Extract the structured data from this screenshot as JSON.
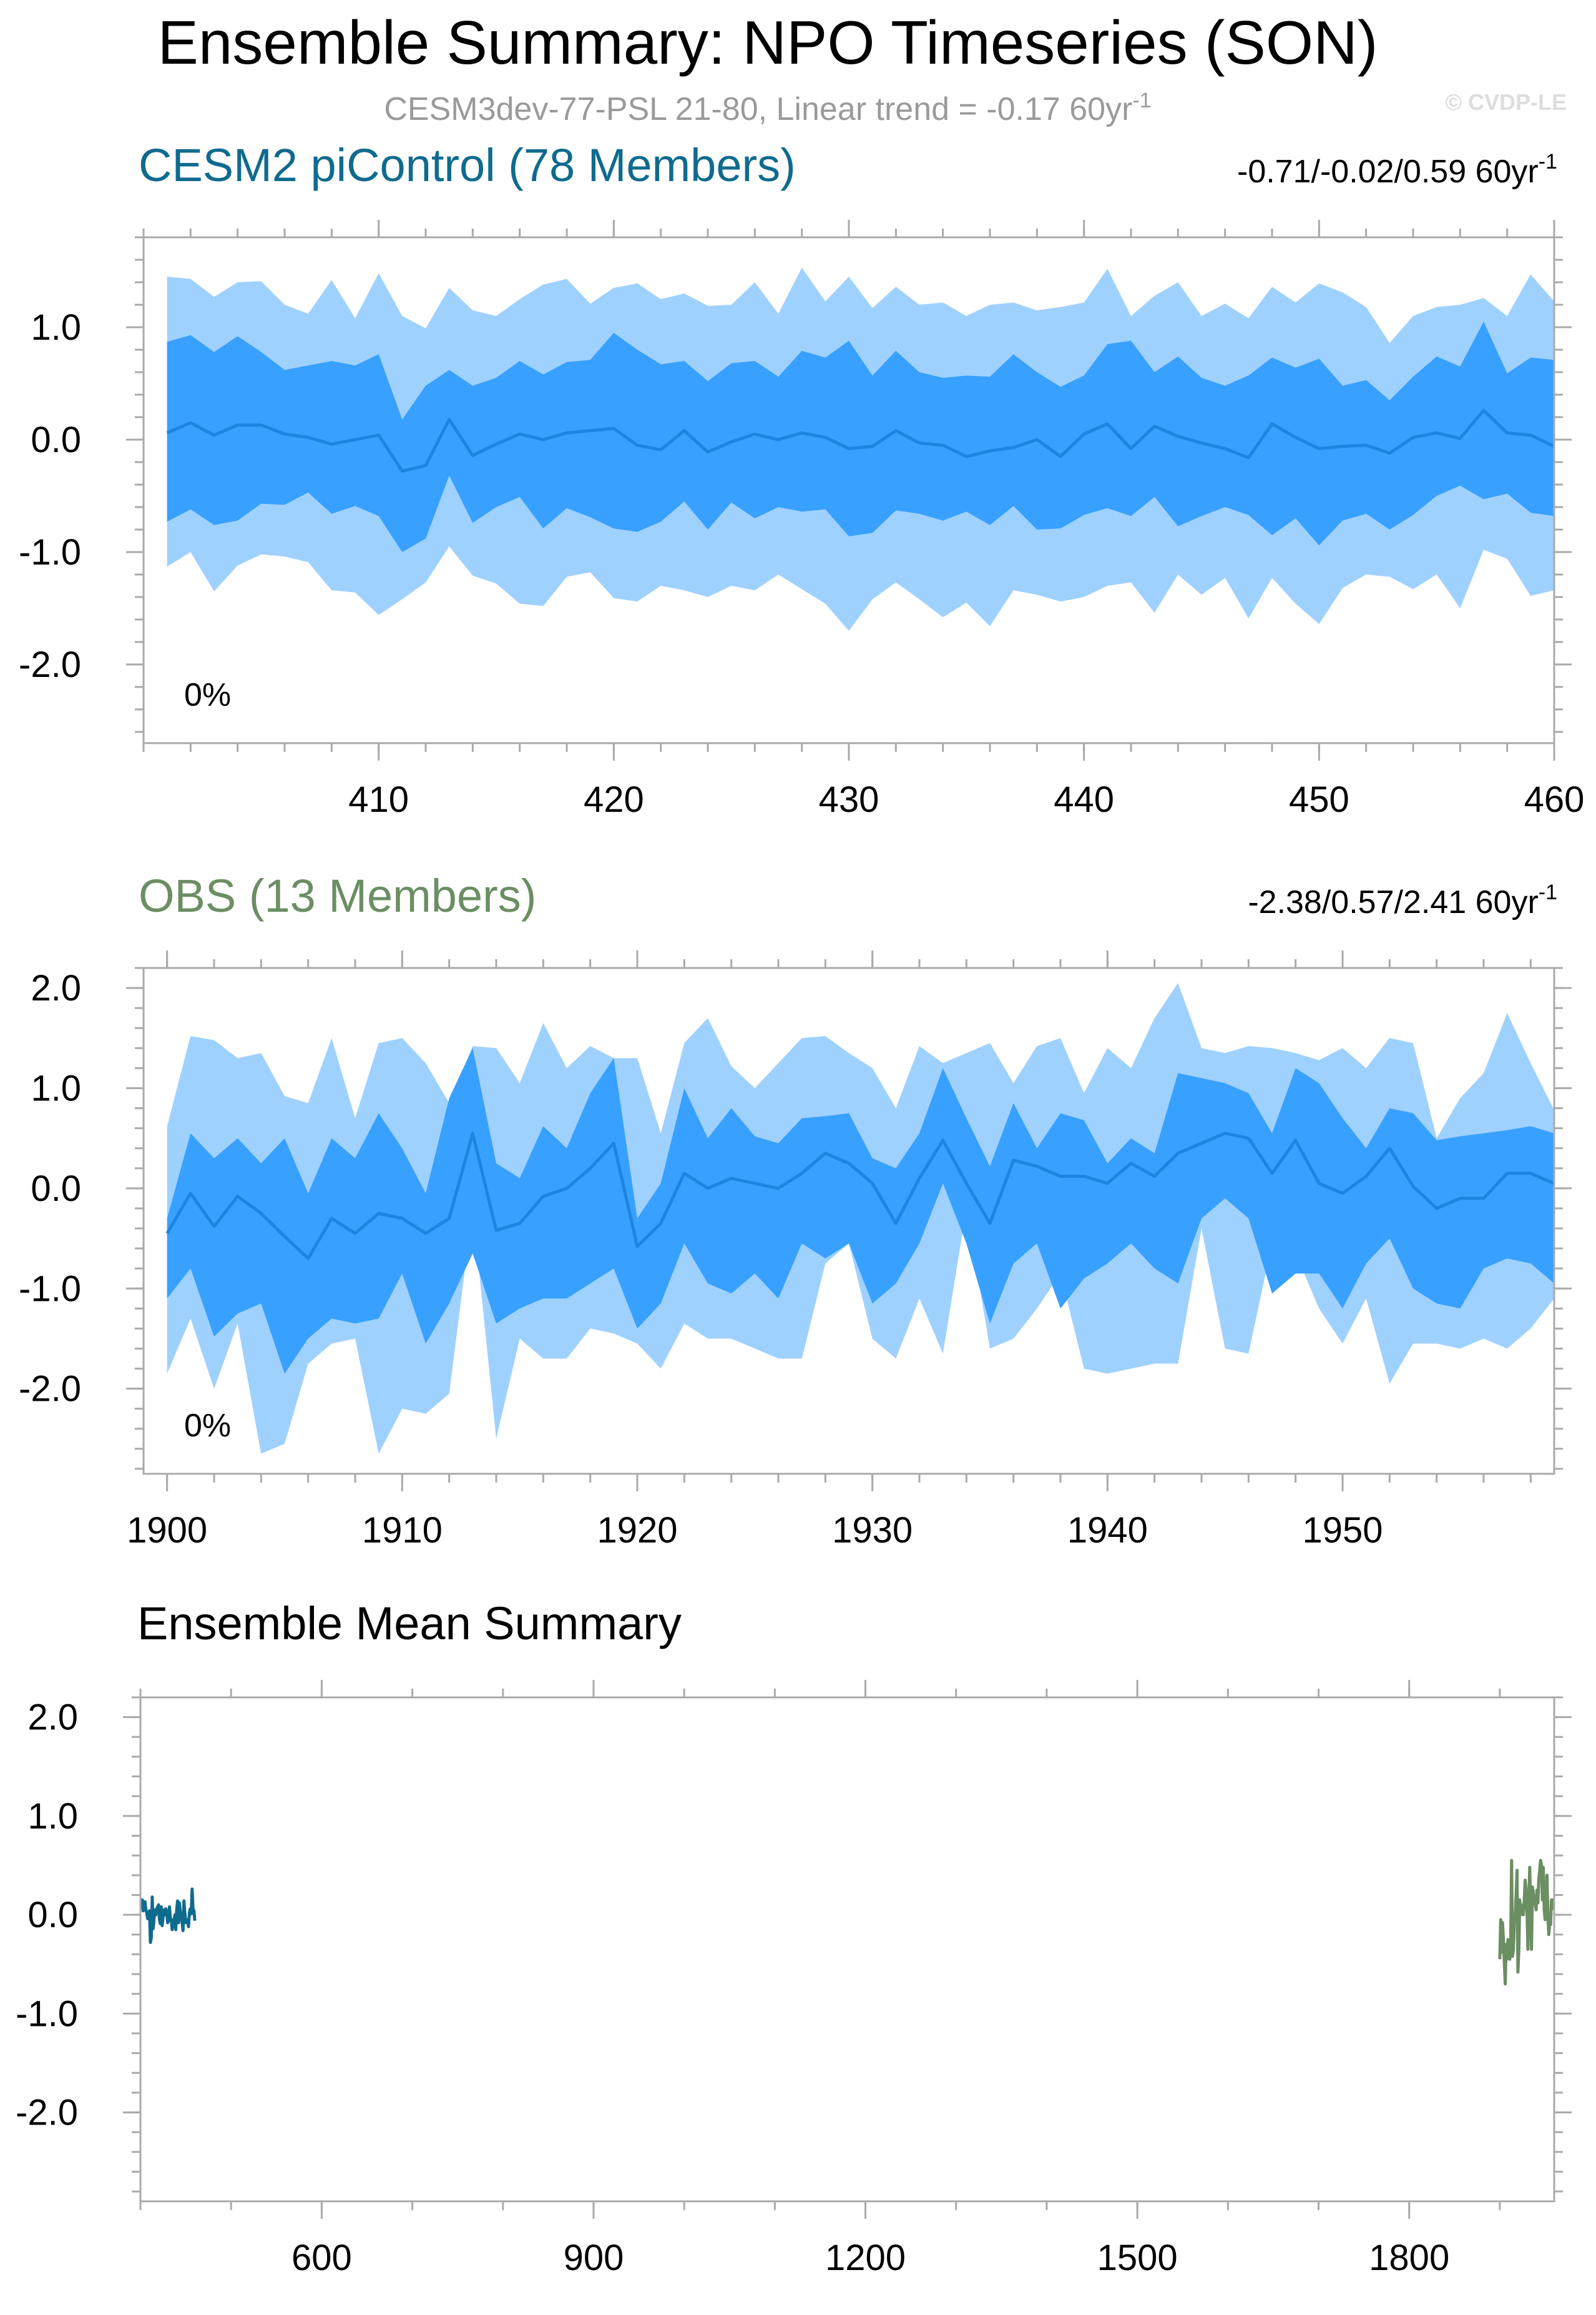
{
  "figure": {
    "title": "Ensemble Summary: NPO Timeseries (SON)",
    "subtitle_main": "CESM3dev-77-PSL 21-80, Linear trend = -0.17 60yr",
    "subtitle_sup": "-1",
    "watermark": "© CVDP-LE",
    "colors": {
      "outer_band": "#9fd1ff",
      "inner_band": "#38a0ff",
      "mean_line": "#1e84e2",
      "cesm_title": "#0f6b8e",
      "obs_title": "#6b8e63",
      "cesm_mean": "#0f6b8e",
      "obs_mean": "#6b8e63"
    }
  },
  "chart_data": [
    {
      "id": "cesm2",
      "type": "area",
      "title": "CESM2 piControl (78 Members)",
      "stats": "-0.71/-0.02/0.59 60yr",
      "stats_sup": "-1",
      "percent_label": "0%",
      "xlim": [
        400,
        460
      ],
      "ylim": [
        -2.7,
        1.8
      ],
      "xticks": [
        410,
        420,
        430,
        440,
        450,
        460
      ],
      "yticks": [
        1.0,
        0.0,
        -1.0,
        -2.0
      ],
      "ytick_labels": [
        "1.0",
        "0.0",
        "-1.0",
        "-2.0"
      ],
      "x": [
        401,
        402,
        403,
        404,
        405,
        406,
        407,
        408,
        409,
        410,
        411,
        412,
        413,
        414,
        415,
        416,
        417,
        418,
        419,
        420,
        421,
        422,
        423,
        424,
        425,
        426,
        427,
        428,
        429,
        430,
        431,
        432,
        433,
        434,
        435,
        436,
        437,
        438,
        439,
        440,
        441,
        442,
        443,
        444,
        445,
        446,
        447,
        448,
        449,
        450,
        451,
        452,
        453,
        454,
        455,
        456,
        457,
        458,
        459,
        460
      ],
      "series": [
        {
          "name": "max",
          "values": [
            1.45,
            1.43,
            1.27,
            1.4,
            1.41,
            1.2,
            1.12,
            1.42,
            1.08,
            1.48,
            1.1,
            0.99,
            1.35,
            1.15,
            1.1,
            1.25,
            1.38,
            1.43,
            1.21,
            1.35,
            1.39,
            1.25,
            1.3,
            1.19,
            1.2,
            1.4,
            1.12,
            1.53,
            1.23,
            1.45,
            1.17,
            1.36,
            1.2,
            1.22,
            1.1,
            1.2,
            1.22,
            1.15,
            1.18,
            1.22,
            1.52,
            1.1,
            1.28,
            1.4,
            1.1,
            1.21,
            1.08,
            1.36,
            1.22,
            1.39,
            1.31,
            1.18,
            0.86,
            1.1,
            1.18,
            1.2,
            1.26,
            1.1,
            1.47,
            1.23
          ]
        },
        {
          "name": "upper",
          "values": [
            0.87,
            0.93,
            0.78,
            0.92,
            0.78,
            0.62,
            0.66,
            0.7,
            0.66,
            0.76,
            0.18,
            0.48,
            0.62,
            0.48,
            0.55,
            0.7,
            0.58,
            0.69,
            0.71,
            0.95,
            0.8,
            0.67,
            0.7,
            0.52,
            0.68,
            0.7,
            0.56,
            0.79,
            0.73,
            0.88,
            0.57,
            0.79,
            0.6,
            0.55,
            0.57,
            0.56,
            0.76,
            0.6,
            0.47,
            0.57,
            0.85,
            0.88,
            0.6,
            0.74,
            0.55,
            0.48,
            0.57,
            0.73,
            0.64,
            0.72,
            0.48,
            0.53,
            0.35,
            0.56,
            0.74,
            0.65,
            1.05,
            0.59,
            0.73,
            0.71
          ]
        },
        {
          "name": "mean",
          "values": [
            0.06,
            0.15,
            0.04,
            0.13,
            0.13,
            0.05,
            0.02,
            -0.04,
            0.0,
            0.04,
            -0.28,
            -0.23,
            0.18,
            -0.14,
            -0.04,
            0.05,
            0.0,
            0.06,
            0.08,
            0.1,
            -0.05,
            -0.09,
            0.08,
            -0.11,
            -0.02,
            0.05,
            0.0,
            0.06,
            0.02,
            -0.08,
            -0.06,
            0.08,
            -0.03,
            -0.05,
            -0.15,
            -0.1,
            -0.07,
            0.0,
            -0.15,
            0.05,
            0.14,
            -0.08,
            0.12,
            0.03,
            -0.03,
            -0.08,
            -0.16,
            0.14,
            0.02,
            -0.08,
            -0.06,
            -0.05,
            -0.12,
            0.02,
            0.06,
            0.01,
            0.26,
            0.06,
            0.04,
            -0.06
          ]
        },
        {
          "name": "lower",
          "values": [
            -0.73,
            -0.62,
            -0.76,
            -0.72,
            -0.57,
            -0.58,
            -0.47,
            -0.66,
            -0.59,
            -0.68,
            -1.0,
            -0.88,
            -0.32,
            -0.74,
            -0.6,
            -0.51,
            -0.79,
            -0.61,
            -0.69,
            -0.79,
            -0.82,
            -0.73,
            -0.55,
            -0.8,
            -0.56,
            -0.7,
            -0.6,
            -0.64,
            -0.62,
            -0.86,
            -0.83,
            -0.63,
            -0.66,
            -0.72,
            -0.64,
            -0.76,
            -0.59,
            -0.8,
            -0.79,
            -0.67,
            -0.61,
            -0.68,
            -0.51,
            -0.77,
            -0.68,
            -0.6,
            -0.67,
            -0.85,
            -0.7,
            -0.94,
            -0.72,
            -0.66,
            -0.8,
            -0.67,
            -0.5,
            -0.41,
            -0.53,
            -0.48,
            -0.65,
            -0.68
          ]
        },
        {
          "name": "min",
          "values": [
            -1.13,
            -1.0,
            -1.35,
            -1.12,
            -1.02,
            -1.04,
            -1.09,
            -1.34,
            -1.36,
            -1.56,
            -1.42,
            -1.27,
            -0.95,
            -1.21,
            -1.28,
            -1.46,
            -1.48,
            -1.22,
            -1.18,
            -1.41,
            -1.44,
            -1.3,
            -1.34,
            -1.4,
            -1.3,
            -1.34,
            -1.2,
            -1.33,
            -1.46,
            -1.7,
            -1.42,
            -1.27,
            -1.42,
            -1.58,
            -1.45,
            -1.66,
            -1.34,
            -1.38,
            -1.44,
            -1.4,
            -1.3,
            -1.27,
            -1.54,
            -1.2,
            -1.38,
            -1.23,
            -1.59,
            -1.23,
            -1.46,
            -1.64,
            -1.32,
            -1.2,
            -1.22,
            -1.33,
            -1.2,
            -1.5,
            -0.98,
            -1.06,
            -1.39,
            -1.34
          ]
        }
      ]
    },
    {
      "id": "obs",
      "type": "area",
      "title": "OBS (13 Members)",
      "stats": "-2.38/0.57/2.41 60yr",
      "stats_sup": "-1",
      "percent_label": "0%",
      "xlim": [
        1899,
        1959
      ],
      "ylim": [
        -2.85,
        2.2
      ],
      "xticks": [
        1900,
        1910,
        1920,
        1930,
        1940,
        1950
      ],
      "yticks": [
        2.0,
        1.0,
        0.0,
        -1.0,
        -2.0
      ],
      "ytick_labels": [
        "2.0",
        "1.0",
        "0.0",
        "-1.0",
        "-2.0"
      ],
      "x": [
        1900,
        1901,
        1902,
        1903,
        1904,
        1905,
        1906,
        1907,
        1908,
        1909,
        1910,
        1911,
        1912,
        1913,
        1914,
        1915,
        1916,
        1917,
        1918,
        1919,
        1920,
        1921,
        1922,
        1923,
        1924,
        1925,
        1926,
        1927,
        1928,
        1929,
        1930,
        1931,
        1932,
        1933,
        1934,
        1935,
        1936,
        1937,
        1938,
        1939,
        1940,
        1941,
        1942,
        1943,
        1944,
        1945,
        1946,
        1947,
        1948,
        1949,
        1950,
        1951,
        1952,
        1953,
        1954,
        1955,
        1956,
        1957,
        1958,
        1959
      ],
      "series": [
        {
          "name": "max",
          "values": [
            0.62,
            1.52,
            1.48,
            1.3,
            1.35,
            0.92,
            0.85,
            1.5,
            0.7,
            1.45,
            1.5,
            1.25,
            0.85,
            1.42,
            1.4,
            1.05,
            1.65,
            1.2,
            1.42,
            1.3,
            1.3,
            0.55,
            1.45,
            1.7,
            1.22,
            1.0,
            1.25,
            1.5,
            1.52,
            1.35,
            1.2,
            0.8,
            1.42,
            1.25,
            1.35,
            1.45,
            1.05,
            1.42,
            1.5,
            0.95,
            1.4,
            1.2,
            1.7,
            2.05,
            1.4,
            1.35,
            1.42,
            1.4,
            1.35,
            1.28,
            1.4,
            1.2,
            1.5,
            1.45,
            0.5,
            0.9,
            1.15,
            1.75,
            1.25,
            0.78
          ]
        },
        {
          "name": "upper",
          "values": [
            -0.3,
            0.55,
            0.3,
            0.5,
            0.25,
            0.5,
            -0.05,
            0.5,
            0.3,
            0.75,
            0.4,
            -0.05,
            0.9,
            1.4,
            0.25,
            0.1,
            0.62,
            0.4,
            0.95,
            1.3,
            -0.3,
            0.05,
            1.0,
            0.5,
            0.8,
            0.52,
            0.45,
            0.7,
            0.72,
            0.75,
            0.3,
            0.2,
            0.55,
            1.2,
            0.7,
            0.22,
            0.85,
            0.4,
            0.75,
            0.68,
            0.25,
            0.5,
            0.35,
            1.15,
            1.1,
            1.05,
            0.95,
            0.55,
            1.2,
            1.05,
            0.7,
            0.4,
            0.8,
            0.75,
            0.48,
            0.52,
            0.55,
            0.58,
            0.62,
            0.55
          ]
        },
        {
          "name": "mean",
          "values": [
            -0.45,
            -0.05,
            -0.38,
            -0.08,
            -0.25,
            -0.48,
            -0.7,
            -0.3,
            -0.45,
            -0.25,
            -0.3,
            -0.45,
            -0.3,
            0.55,
            -0.42,
            -0.35,
            -0.08,
            0.0,
            0.2,
            0.45,
            -0.58,
            -0.35,
            0.15,
            0.0,
            0.1,
            0.05,
            0.0,
            0.15,
            0.35,
            0.25,
            0.05,
            -0.35,
            0.1,
            0.48,
            0.05,
            -0.35,
            0.28,
            0.22,
            0.12,
            0.12,
            0.05,
            0.25,
            0.12,
            0.35,
            0.45,
            0.55,
            0.5,
            0.15,
            0.48,
            0.05,
            -0.05,
            0.12,
            0.4,
            0.02,
            -0.2,
            -0.1,
            -0.1,
            0.15,
            0.15,
            0.05
          ]
        },
        {
          "name": "lower",
          "values": [
            -1.1,
            -0.8,
            -1.48,
            -1.25,
            -1.15,
            -1.85,
            -1.5,
            -1.3,
            -1.35,
            -1.3,
            -0.85,
            -1.55,
            -1.15,
            -0.65,
            -1.35,
            -1.2,
            -1.1,
            -1.1,
            -0.95,
            -0.8,
            -1.4,
            -1.15,
            -0.55,
            -0.95,
            -1.05,
            -0.85,
            -1.1,
            -0.55,
            -0.7,
            -0.55,
            -1.15,
            -0.95,
            -0.55,
            0.05,
            -0.55,
            -1.35,
            -0.75,
            -0.55,
            -1.2,
            -0.9,
            -0.75,
            -0.55,
            -0.8,
            -0.95,
            -0.3,
            -0.1,
            -0.3,
            -1.05,
            -0.85,
            -0.85,
            -1.2,
            -0.75,
            -0.5,
            -1.0,
            -1.15,
            -1.2,
            -0.8,
            -0.7,
            -0.75,
            -0.95
          ]
        },
        {
          "name": "min",
          "values": [
            -1.85,
            -1.3,
            -2.0,
            -1.35,
            -2.65,
            -2.55,
            -1.75,
            -1.55,
            -1.5,
            -2.65,
            -2.2,
            -2.25,
            -2.05,
            -0.2,
            -2.5,
            -1.5,
            -1.7,
            -1.7,
            -1.4,
            -1.45,
            -1.55,
            -1.8,
            -1.35,
            -1.5,
            -1.5,
            -1.6,
            -1.7,
            -1.7,
            -0.75,
            -0.55,
            -1.5,
            -1.7,
            -1.1,
            -1.65,
            -0.2,
            -1.6,
            -1.5,
            -1.2,
            -0.85,
            -1.8,
            -1.85,
            -1.8,
            -1.75,
            -1.75,
            -0.4,
            -1.6,
            -1.65,
            -0.55,
            -0.65,
            -1.2,
            -1.55,
            -1.1,
            -1.95,
            -1.55,
            -1.55,
            -1.6,
            -1.5,
            -1.6,
            -1.4,
            -1.1
          ]
        }
      ]
    },
    {
      "id": "ensemble_mean",
      "type": "line",
      "title": "Ensemble Mean Summary",
      "xlim": [
        400,
        1960
      ],
      "ylim": [
        -2.9,
        2.2
      ],
      "xticks": [
        600,
        900,
        1200,
        1500,
        1800
      ],
      "yticks": [
        2.0,
        1.0,
        0.0,
        -1.0,
        -2.0
      ],
      "ytick_labels": [
        "2.0",
        "1.0",
        "0.0",
        "-1.0",
        "-2.0"
      ],
      "series": [
        {
          "name": "CESM2 piControl",
          "source": "cesm2"
        },
        {
          "name": "OBS",
          "source": "obs"
        }
      ]
    }
  ]
}
